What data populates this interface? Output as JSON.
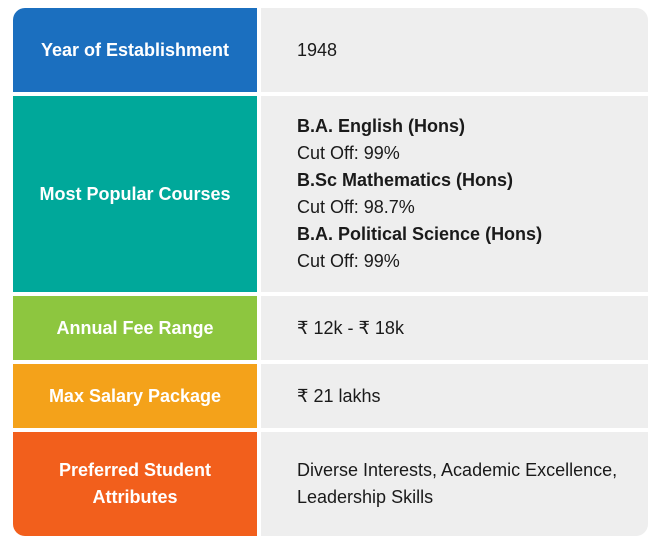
{
  "rows": [
    {
      "label": "Year of Establishment",
      "value": "1948",
      "color": "#1b6fbf"
    },
    {
      "label": "Most Popular Courses",
      "color": "#00a89a",
      "courses": [
        {
          "name": "B.A. English (Hons)",
          "cutoff": "Cut Off: 99%"
        },
        {
          "name": "B.Sc Mathematics (Hons)",
          "cutoff": "Cut Off: 98.7%"
        },
        {
          "name": "B.A. Political Science (Hons)",
          "cutoff": "Cut Off: 99%"
        }
      ]
    },
    {
      "label": "Annual Fee Range",
      "value": "₹ 12k - ₹ 18k",
      "color": "#8dc63f"
    },
    {
      "label": "Max Salary Package",
      "value": "₹ 21 lakhs",
      "color": "#f4a21a"
    },
    {
      "label": "Preferred Student Attributes",
      "value": "Diverse Interests, Academic Excellence, Leadership Skills",
      "color": "#f25f1c"
    }
  ]
}
